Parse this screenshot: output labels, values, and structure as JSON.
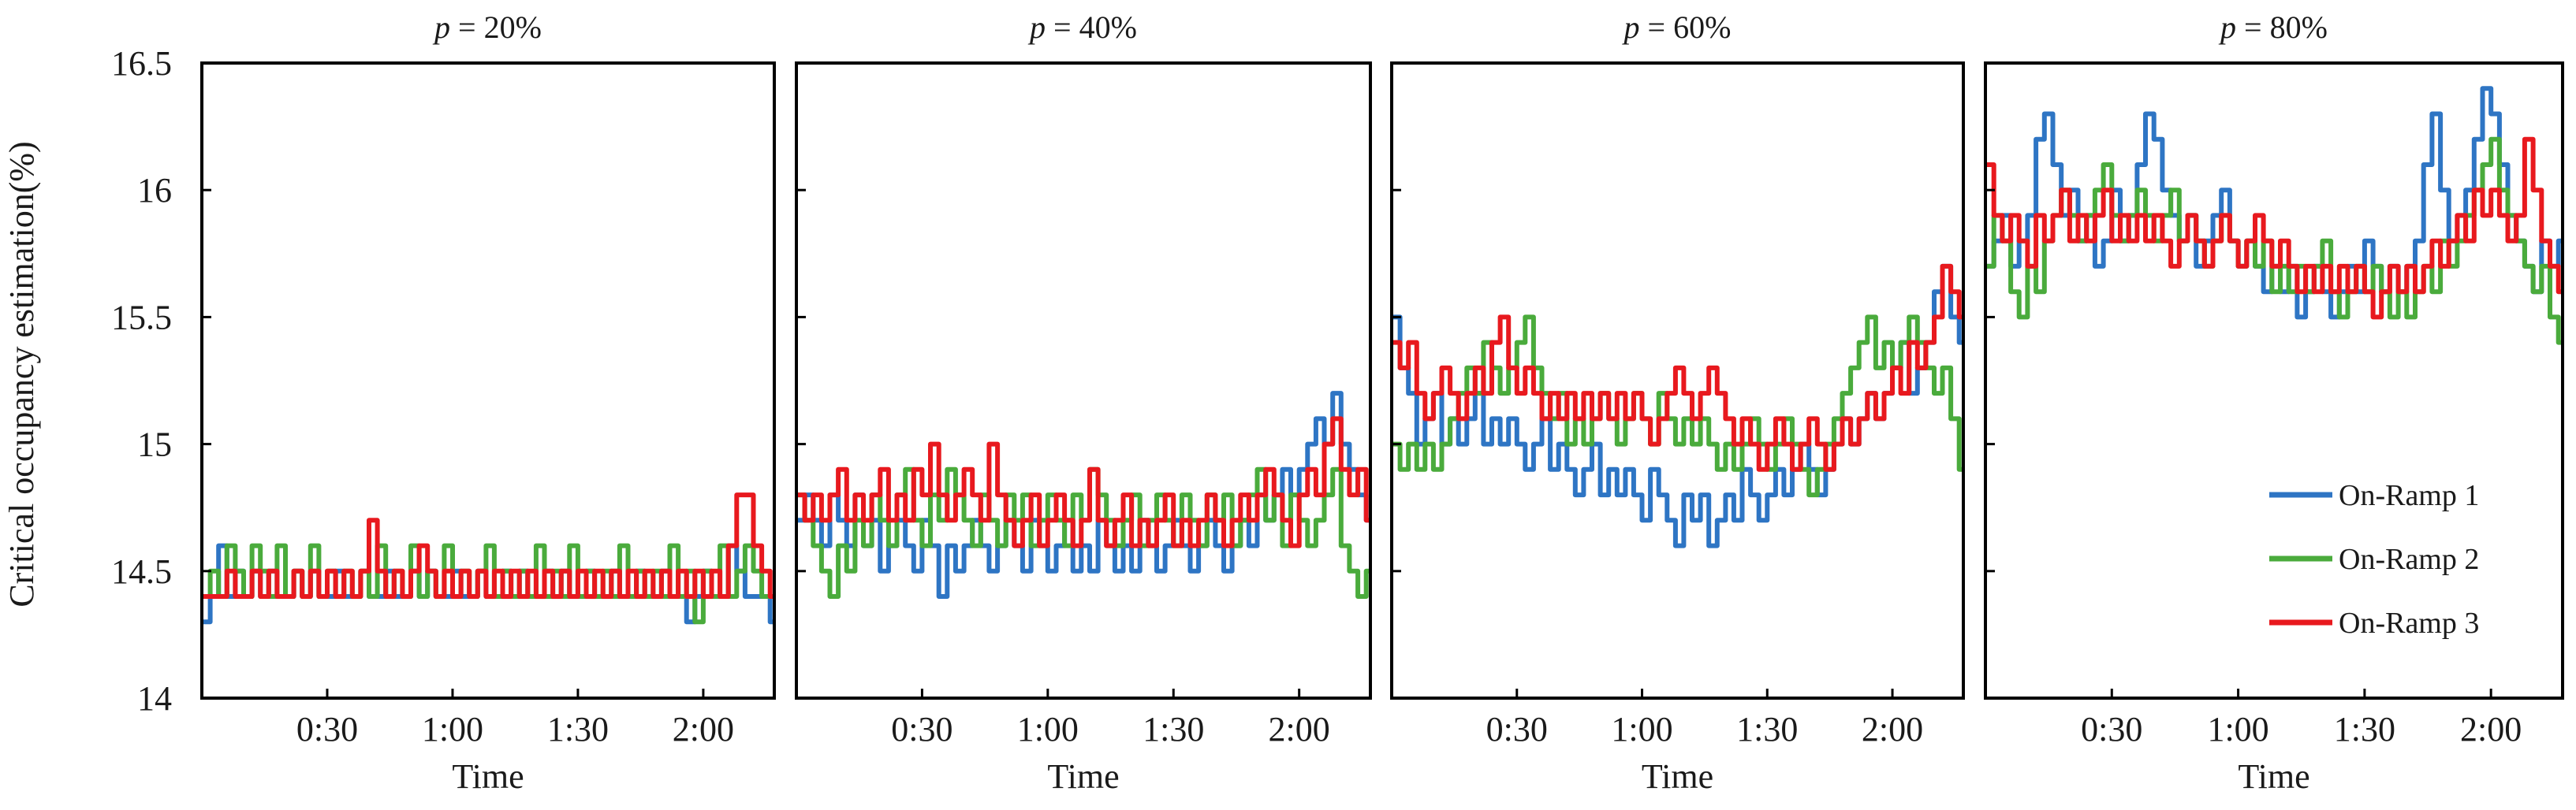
{
  "chart_data": {
    "type": "line",
    "ylabel": "Critical occupancy estimation(%)",
    "xlabel": "Time",
    "ylim": [
      14,
      16.5
    ],
    "yticks": [
      "14",
      "14.5",
      "15",
      "15.5",
      "16",
      "16.5"
    ],
    "xlim_minutes": [
      0,
      137
    ],
    "xticks": [
      {
        "minutes": 30,
        "label": "0:30"
      },
      {
        "minutes": 60,
        "label": "1:00"
      },
      {
        "minutes": 90,
        "label": "1:30"
      },
      {
        "minutes": 120,
        "label": "2:00"
      }
    ],
    "series_names": [
      "On-Ramp 1",
      "On-Ramp 2",
      "On-Ramp 3"
    ],
    "series_colors": [
      "#2e75c4",
      "#4aab3c",
      "#e8191e"
    ],
    "legend_position": "bottom-right of last panel",
    "panels": [
      {
        "title_var": "p",
        "title_value": " = 20%",
        "step_minutes": 2,
        "series": [
          {
            "name": "On-Ramp 1",
            "values": [
              14.3,
              14.4,
              14.6,
              14.4,
              14.5,
              14.4,
              14.5,
              14.4,
              14.5,
              14.4,
              14.4,
              14.5,
              14.4,
              14.5,
              14.4,
              14.4,
              14.5,
              14.4,
              14.4,
              14.5,
              14.4,
              14.4,
              14.5,
              14.4,
              14.4,
              14.5,
              14.4,
              14.5,
              14.4,
              14.4,
              14.5,
              14.4,
              14.4,
              14.5,
              14.4,
              14.4,
              14.5,
              14.4,
              14.5,
              14.4,
              14.4,
              14.5,
              14.4,
              14.5,
              14.4,
              14.4,
              14.5,
              14.4,
              14.4,
              14.5,
              14.4,
              14.4,
              14.5,
              14.4,
              14.4,
              14.5,
              14.4,
              14.4,
              14.3,
              14.4,
              14.5,
              14.4,
              14.4,
              14.6,
              14.5,
              14.4,
              14.4,
              14.4,
              14.3
            ]
          },
          {
            "name": "On-Ramp 2",
            "values": [
              14.4,
              14.5,
              14.4,
              14.6,
              14.5,
              14.4,
              14.6,
              14.5,
              14.4,
              14.6,
              14.4,
              14.5,
              14.4,
              14.6,
              14.4,
              14.5,
              14.4,
              14.5,
              14.4,
              14.5,
              14.4,
              14.6,
              14.4,
              14.5,
              14.4,
              14.6,
              14.4,
              14.5,
              14.4,
              14.6,
              14.4,
              14.5,
              14.4,
              14.5,
              14.6,
              14.4,
              14.5,
              14.4,
              14.5,
              14.4,
              14.6,
              14.4,
              14.5,
              14.4,
              14.6,
              14.4,
              14.5,
              14.4,
              14.5,
              14.4,
              14.6,
              14.4,
              14.5,
              14.4,
              14.5,
              14.4,
              14.6,
              14.4,
              14.5,
              14.3,
              14.5,
              14.4,
              14.6,
              14.4,
              14.5,
              14.6,
              14.5,
              14.4,
              14.4
            ]
          },
          {
            "name": "On-Ramp 3",
            "values": [
              14.4,
              14.4,
              14.4,
              14.5,
              14.4,
              14.4,
              14.5,
              14.4,
              14.5,
              14.4,
              14.4,
              14.5,
              14.4,
              14.5,
              14.4,
              14.5,
              14.4,
              14.5,
              14.4,
              14.5,
              14.7,
              14.5,
              14.4,
              14.5,
              14.4,
              14.5,
              14.6,
              14.5,
              14.4,
              14.5,
              14.4,
              14.5,
              14.4,
              14.5,
              14.4,
              14.5,
              14.4,
              14.5,
              14.4,
              14.5,
              14.4,
              14.5,
              14.4,
              14.5,
              14.4,
              14.5,
              14.4,
              14.5,
              14.4,
              14.5,
              14.4,
              14.5,
              14.4,
              14.5,
              14.4,
              14.5,
              14.4,
              14.5,
              14.4,
              14.5,
              14.4,
              14.5,
              14.4,
              14.6,
              14.8,
              14.8,
              14.6,
              14.5,
              14.4
            ]
          }
        ]
      },
      {
        "title_var": "p",
        "title_value": " = 40%",
        "step_minutes": 2,
        "series": [
          {
            "name": "On-Ramp 1",
            "values": [
              14.7,
              14.8,
              14.7,
              14.6,
              14.8,
              14.7,
              14.6,
              14.8,
              14.6,
              14.7,
              14.5,
              14.6,
              14.7,
              14.6,
              14.5,
              14.7,
              14.6,
              14.4,
              14.6,
              14.5,
              14.6,
              14.7,
              14.6,
              14.5,
              14.6,
              14.7,
              14.6,
              14.5,
              14.7,
              14.6,
              14.5,
              14.6,
              14.7,
              14.5,
              14.6,
              14.5,
              14.7,
              14.6,
              14.5,
              14.6,
              14.5,
              14.7,
              14.6,
              14.5,
              14.6,
              14.7,
              14.6,
              14.5,
              14.6,
              14.7,
              14.6,
              14.5,
              14.6,
              14.7,
              14.6,
              14.8,
              14.7,
              14.8,
              14.9,
              14.8,
              14.9,
              15.0,
              15.1,
              15.0,
              15.2,
              15.0,
              14.9,
              14.8,
              14.7
            ]
          },
          {
            "name": "On-Ramp 2",
            "values": [
              14.8,
              14.7,
              14.6,
              14.5,
              14.4,
              14.6,
              14.5,
              14.7,
              14.6,
              14.8,
              14.7,
              14.6,
              14.8,
              14.9,
              14.7,
              14.6,
              14.8,
              14.7,
              14.9,
              14.8,
              14.7,
              14.6,
              14.8,
              14.7,
              14.6,
              14.8,
              14.7,
              14.8,
              14.6,
              14.7,
              14.8,
              14.7,
              14.6,
              14.8,
              14.7,
              14.9,
              14.8,
              14.7,
              14.6,
              14.7,
              14.8,
              14.6,
              14.7,
              14.8,
              14.7,
              14.6,
              14.8,
              14.7,
              14.6,
              14.8,
              14.7,
              14.8,
              14.6,
              14.7,
              14.8,
              14.9,
              14.7,
              14.8,
              14.6,
              14.8,
              14.7,
              14.6,
              14.7,
              14.8,
              14.9,
              14.6,
              14.5,
              14.4,
              14.5
            ]
          },
          {
            "name": "On-Ramp 3",
            "values": [
              14.8,
              14.7,
              14.8,
              14.7,
              14.8,
              14.9,
              14.7,
              14.8,
              14.7,
              14.8,
              14.9,
              14.7,
              14.8,
              14.7,
              14.9,
              14.8,
              15.0,
              14.8,
              14.7,
              14.8,
              14.9,
              14.8,
              14.7,
              15.0,
              14.8,
              14.7,
              14.6,
              14.7,
              14.8,
              14.6,
              14.7,
              14.8,
              14.7,
              14.6,
              14.7,
              14.9,
              14.7,
              14.6,
              14.7,
              14.8,
              14.6,
              14.7,
              14.6,
              14.7,
              14.8,
              14.6,
              14.7,
              14.6,
              14.7,
              14.8,
              14.7,
              14.6,
              14.7,
              14.8,
              14.7,
              14.8,
              14.9,
              14.8,
              14.7,
              14.6,
              14.8,
              14.9,
              14.8,
              15.0,
              15.1,
              14.9,
              14.8,
              14.9,
              14.7
            ]
          }
        ]
      },
      {
        "title_var": "p",
        "title_value": " = 60%",
        "step_minutes": 2,
        "series": [
          {
            "name": "On-Ramp 1",
            "values": [
              15.5,
              15.3,
              15.2,
              15.0,
              15.1,
              15.2,
              15.0,
              15.1,
              15.0,
              15.1,
              15.2,
              15.0,
              15.1,
              15.0,
              15.1,
              15.0,
              14.9,
              15.0,
              15.1,
              14.9,
              15.0,
              14.9,
              14.8,
              14.9,
              15.0,
              14.8,
              14.9,
              14.8,
              14.9,
              14.8,
              14.7,
              14.9,
              14.8,
              14.7,
              14.6,
              14.8,
              14.7,
              14.8,
              14.6,
              14.7,
              14.8,
              14.7,
              14.9,
              14.8,
              14.7,
              14.8,
              14.9,
              14.8,
              14.9,
              15.0,
              14.9,
              14.8,
              14.9,
              15.0,
              15.1,
              15.0,
              15.1,
              15.2,
              15.1,
              15.2,
              15.3,
              15.4,
              15.2,
              15.3,
              15.4,
              15.6,
              15.7,
              15.5,
              15.4
            ]
          },
          {
            "name": "On-Ramp 2",
            "values": [
              15.0,
              14.9,
              15.0,
              14.9,
              15.0,
              14.9,
              15.0,
              15.1,
              15.2,
              15.3,
              15.2,
              15.4,
              15.3,
              15.2,
              15.3,
              15.4,
              15.5,
              15.3,
              15.2,
              15.1,
              15.2,
              15.0,
              15.1,
              15.0,
              15.1,
              15.2,
              15.1,
              15.0,
              15.1,
              15.2,
              15.1,
              15.0,
              15.2,
              15.1,
              15.0,
              15.1,
              15.0,
              15.1,
              15.0,
              14.9,
              15.0,
              14.9,
              15.0,
              15.1,
              15.0,
              14.9,
              15.0,
              15.1,
              15.0,
              14.9,
              14.8,
              14.9,
              15.0,
              15.1,
              15.2,
              15.3,
              15.4,
              15.5,
              15.3,
              15.4,
              15.3,
              15.4,
              15.5,
              15.4,
              15.3,
              15.2,
              15.3,
              15.1,
              14.9
            ]
          },
          {
            "name": "On-Ramp 3",
            "values": [
              15.4,
              15.3,
              15.4,
              15.2,
              15.1,
              15.2,
              15.3,
              15.2,
              15.1,
              15.2,
              15.3,
              15.2,
              15.4,
              15.5,
              15.3,
              15.2,
              15.3,
              15.2,
              15.1,
              15.2,
              15.1,
              15.2,
              15.1,
              15.2,
              15.1,
              15.2,
              15.1,
              15.2,
              15.1,
              15.2,
              15.1,
              15.0,
              15.1,
              15.2,
              15.3,
              15.2,
              15.1,
              15.2,
              15.3,
              15.2,
              15.1,
              15.0,
              15.1,
              15.0,
              14.9,
              15.0,
              15.1,
              15.0,
              14.9,
              15.0,
              15.1,
              15.0,
              14.9,
              15.0,
              15.1,
              15.0,
              15.1,
              15.2,
              15.1,
              15.2,
              15.3,
              15.2,
              15.4,
              15.3,
              15.4,
              15.5,
              15.7,
              15.6,
              15.5
            ]
          }
        ]
      },
      {
        "title_var": "p",
        "title_value": " = 80%",
        "step_minutes": 2,
        "series": [
          {
            "name": "On-Ramp 1",
            "values": [
              15.7,
              15.8,
              15.9,
              15.7,
              15.8,
              15.9,
              16.2,
              16.3,
              16.1,
              15.9,
              16.0,
              15.8,
              15.9,
              15.7,
              15.8,
              16.0,
              15.8,
              15.9,
              16.1,
              16.3,
              16.2,
              16.0,
              15.9,
              15.8,
              15.9,
              15.7,
              15.8,
              15.9,
              16.0,
              15.8,
              15.7,
              15.8,
              15.7,
              15.6,
              15.7,
              15.6,
              15.7,
              15.5,
              15.6,
              15.7,
              15.6,
              15.5,
              15.6,
              15.7,
              15.6,
              15.8,
              15.7,
              15.6,
              15.7,
              15.6,
              15.7,
              15.8,
              16.1,
              16.3,
              16.0,
              15.8,
              15.9,
              16.0,
              16.2,
              16.4,
              16.3,
              16.1,
              15.9,
              15.8,
              15.7,
              15.6,
              15.8,
              15.7,
              15.8
            ]
          },
          {
            "name": "On-Ramp 2",
            "values": [
              15.7,
              15.9,
              15.8,
              15.6,
              15.5,
              15.7,
              15.6,
              15.8,
              15.9,
              16.0,
              15.9,
              15.8,
              15.9,
              16.0,
              16.1,
              15.9,
              15.8,
              15.9,
              16.0,
              15.9,
              15.8,
              15.9,
              16.0,
              15.8,
              15.9,
              15.8,
              15.7,
              15.8,
              15.9,
              15.8,
              15.7,
              15.8,
              15.7,
              15.8,
              15.6,
              15.7,
              15.6,
              15.7,
              15.6,
              15.7,
              15.8,
              15.6,
              15.5,
              15.6,
              15.7,
              15.6,
              15.7,
              15.6,
              15.5,
              15.6,
              15.5,
              15.6,
              15.7,
              15.6,
              15.8,
              15.7,
              15.8,
              15.9,
              16.0,
              16.1,
              16.2,
              16.0,
              15.9,
              15.8,
              15.7,
              15.6,
              15.7,
              15.5,
              15.4
            ]
          },
          {
            "name": "On-Ramp 3",
            "values": [
              16.1,
              15.9,
              15.8,
              15.9,
              15.8,
              15.7,
              15.9,
              15.8,
              15.9,
              16.0,
              15.8,
              15.9,
              15.8,
              15.9,
              16.0,
              15.8,
              15.9,
              15.8,
              15.9,
              15.8,
              15.9,
              15.8,
              15.7,
              15.8,
              15.9,
              15.8,
              15.7,
              15.8,
              15.9,
              15.8,
              15.7,
              15.8,
              15.9,
              15.8,
              15.7,
              15.8,
              15.7,
              15.6,
              15.7,
              15.6,
              15.7,
              15.6,
              15.7,
              15.6,
              15.7,
              15.6,
              15.5,
              15.6,
              15.7,
              15.6,
              15.7,
              15.6,
              15.7,
              15.8,
              15.7,
              15.8,
              15.9,
              15.8,
              16.0,
              15.9,
              16.0,
              15.9,
              15.8,
              15.9,
              16.2,
              16.0,
              15.8,
              15.7,
              15.6
            ]
          }
        ]
      }
    ]
  }
}
